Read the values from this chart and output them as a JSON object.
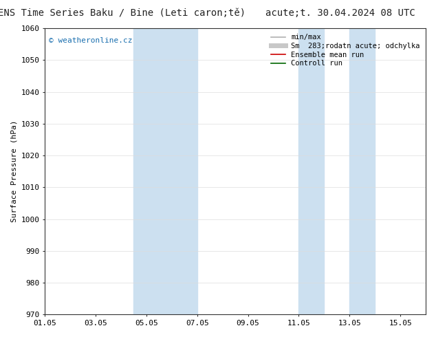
{
  "title_left": "ENS Time Series Baku / Bine (Leti caron;tě)",
  "title_right": "acute;t. 30.04.2024 08 UTC",
  "ylabel": "Surface Pressure (hPa)",
  "ylim": [
    970,
    1060
  ],
  "yticks": [
    970,
    980,
    990,
    1000,
    1010,
    1020,
    1030,
    1040,
    1050,
    1060
  ],
  "xtick_labels": [
    "01.05",
    "03.05",
    "05.05",
    "07.05",
    "09.05",
    "11.05",
    "13.05",
    "15.05"
  ],
  "xtick_positions": [
    0,
    2,
    4,
    6,
    8,
    10,
    12,
    14
  ],
  "xlim": [
    0,
    15
  ],
  "shaded_regions": [
    {
      "x_start": 3.5,
      "x_end": 5.0,
      "color": "#cce0f0",
      "alpha": 1.0
    },
    {
      "x_start": 5.0,
      "x_end": 6.0,
      "color": "#cce0f0",
      "alpha": 1.0
    },
    {
      "x_start": 10.0,
      "x_end": 11.0,
      "color": "#cce0f0",
      "alpha": 1.0
    },
    {
      "x_start": 12.0,
      "x_end": 13.0,
      "color": "#cce0f0",
      "alpha": 1.0
    }
  ],
  "watermark_text": "© weatheronline.cz",
  "watermark_color": "#1a6faf",
  "watermark_fontsize": 8,
  "legend_entries": [
    {
      "label": "min/max",
      "color": "#b0b0b0",
      "lw": 1.2,
      "ls": "-"
    },
    {
      "label": "Sm  283;rodatn acute; odchylka",
      "color": "#c8c8c8",
      "lw": 5,
      "ls": "-"
    },
    {
      "label": "Ensemble mean run",
      "color": "#cc0000",
      "lw": 1.2,
      "ls": "-"
    },
    {
      "label": "Controll run",
      "color": "#006600",
      "lw": 1.2,
      "ls": "-"
    }
  ],
  "grid_color": "#dddddd",
  "bg_color": "#ffffff",
  "plot_bg_color": "#ffffff",
  "title_fontsize": 10,
  "tick_fontsize": 8,
  "ylabel_fontsize": 8,
  "legend_fontsize": 7.5
}
